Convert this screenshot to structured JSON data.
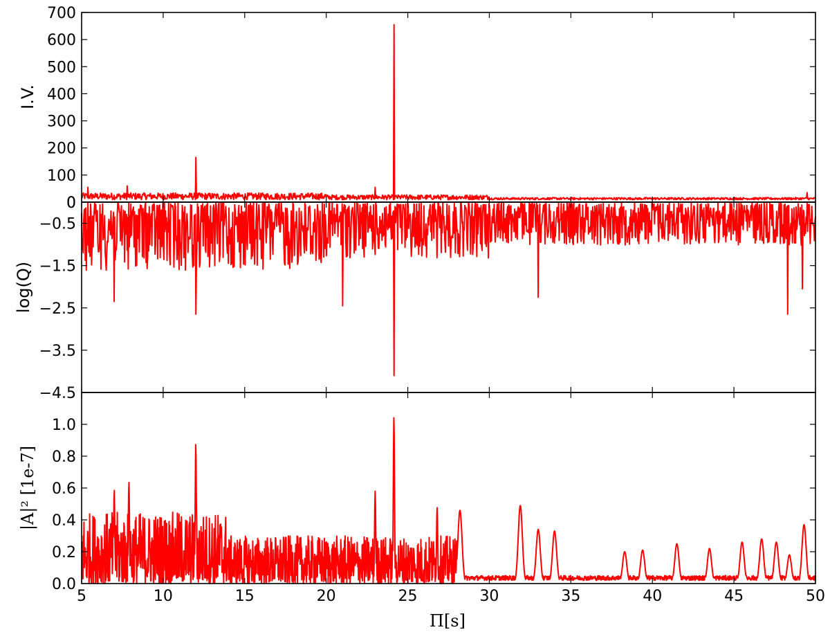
{
  "chart_data": [
    {
      "type": "line",
      "panel": "top",
      "ylabel": "I.V.",
      "xlim": [
        5,
        50
      ],
      "ylim": [
        0,
        700
      ],
      "yticks": [
        0,
        100,
        200,
        300,
        400,
        500,
        600,
        700
      ],
      "ytick_labels": [
        "0",
        "100",
        "200",
        "300",
        "400",
        "500",
        "600",
        "700"
      ],
      "series_color": "#ff0000",
      "baseline": 15,
      "peaks": [
        {
          "x": 12.0,
          "y": 165
        },
        {
          "x": 24.15,
          "y": 655
        },
        {
          "x": 5.4,
          "y": 55
        },
        {
          "x": 7.8,
          "y": 60
        },
        {
          "x": 23.0,
          "y": 55
        },
        {
          "x": 49.5,
          "y": 35
        }
      ]
    },
    {
      "type": "line",
      "panel": "middle",
      "ylabel": "log(Q)",
      "xlim": [
        5,
        50
      ],
      "ylim": [
        -4.5,
        0
      ],
      "yticks": [
        0,
        -0.5,
        -1.5,
        -2.5,
        -3.5,
        -4.5
      ],
      "ytick_labels": [
        "0",
        "−0.5",
        "−1.5",
        "−2.5",
        "−3.5",
        "−4.5"
      ],
      "series_color": "#ff0000",
      "minima": [
        {
          "x": 24.15,
          "y": -4.1
        },
        {
          "x": 12.0,
          "y": -2.65
        },
        {
          "x": 48.3,
          "y": -2.65
        },
        {
          "x": 21.0,
          "y": -2.45
        },
        {
          "x": 7.0,
          "y": -2.35
        },
        {
          "x": 33.0,
          "y": -2.25
        },
        {
          "x": 49.2,
          "y": -2.05
        }
      ]
    },
    {
      "type": "line",
      "panel": "bottom",
      "xlabel": "Π[s]",
      "ylabel": "|A|² [1e-7]",
      "xlim": [
        5,
        50
      ],
      "ylim": [
        0,
        1.2
      ],
      "yticks": [
        0.0,
        0.2,
        0.4,
        0.6,
        0.8,
        1.0
      ],
      "ytick_labels": [
        "0.0",
        "0.2",
        "0.4",
        "0.6",
        "0.8",
        "1.0"
      ],
      "xticks": [
        5,
        10,
        15,
        20,
        25,
        30,
        35,
        40,
        45,
        50
      ],
      "xtick_labels": [
        "5",
        "10",
        "15",
        "20",
        "25",
        "30",
        "35",
        "40",
        "45",
        "50"
      ],
      "series_color": "#ff0000",
      "peaks": [
        {
          "x": 24.15,
          "y": 1.05
        },
        {
          "x": 12.0,
          "y": 0.88
        },
        {
          "x": 7.9,
          "y": 0.64
        },
        {
          "x": 7.0,
          "y": 0.59
        },
        {
          "x": 23.0,
          "y": 0.58
        },
        {
          "x": 31.9,
          "y": 0.49
        },
        {
          "x": 26.8,
          "y": 0.48
        },
        {
          "x": 28.2,
          "y": 0.46
        },
        {
          "x": 49.3,
          "y": 0.37
        },
        {
          "x": 33.0,
          "y": 0.34
        },
        {
          "x": 34.0,
          "y": 0.33
        },
        {
          "x": 46.7,
          "y": 0.28
        },
        {
          "x": 47.6,
          "y": 0.26
        },
        {
          "x": 45.5,
          "y": 0.26
        },
        {
          "x": 41.5,
          "y": 0.25
        },
        {
          "x": 43.5,
          "y": 0.22
        },
        {
          "x": 39.4,
          "y": 0.21
        },
        {
          "x": 38.3,
          "y": 0.2
        },
        {
          "x": 48.4,
          "y": 0.18
        }
      ]
    }
  ]
}
